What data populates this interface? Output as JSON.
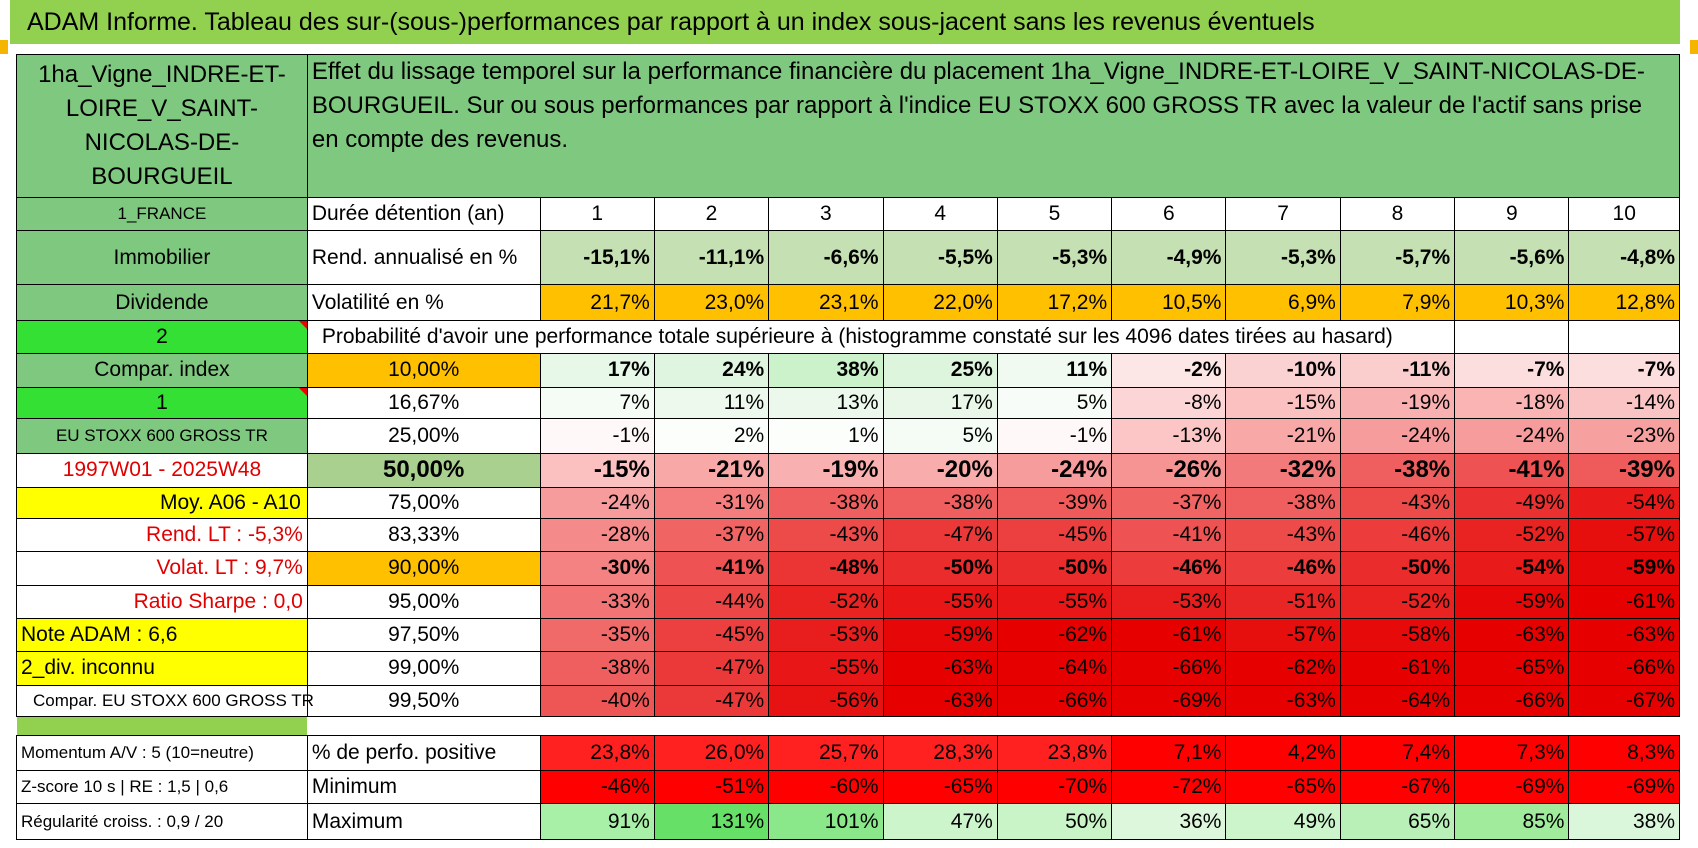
{
  "title": "ADAM Informe. Tableau des sur-(sous-)performances par rapport à un index sous-jacent sans les revenus éventuels",
  "asset": {
    "name": "1ha_Vigne_INDRE-ET-LOIRE_V_SAINT-NICOLAS-DE-BOURGUEIL",
    "country": "1_FRANCE",
    "type": "Immobilier",
    "revenue_kind": "Dividende",
    "flag_value_2": "2",
    "compar_label": "Compar. index",
    "flag_value_1": "1",
    "index_name": "EU STOXX 600 GROSS TR",
    "period": "1997W01 - 2025W48",
    "moy": "Moy. A06 - A10",
    "rend_lt": "Rend. LT :    -5,3%",
    "volat_lt": "Volat. LT :    9,7%",
    "sharpe": "Ratio Sharpe :    0,0",
    "note": "Note ADAM : 6,6",
    "div": "2_div. inconnu",
    "compar_full": "Compar. EU STOXX 600 GROSS TR",
    "momentum": "Momentum A/V : 5 (10=neutre)",
    "zscore": "Z-score 10 s | RE : 1,5 | 0,6",
    "regularite": "Régularité croiss. : 0,9 / 20"
  },
  "description": "Effet du lissage temporel sur la performance financière du placement 1ha_Vigne_INDRE-ET-LOIRE_V_SAINT-NICOLAS-DE-BOURGUEIL. Sur ou sous performances par rapport à l'indice EU STOXX 600 GROSS TR avec la valeur de l'actif sans prise en compte des revenus.",
  "header": {
    "duree_label": "Durée détention (an)",
    "years": [
      "1",
      "2",
      "3",
      "4",
      "5",
      "6",
      "7",
      "8",
      "9",
      "10"
    ]
  },
  "rend": {
    "label": "Rend. annualisé en %",
    "values": [
      "-15,1%",
      "-11,1%",
      "-6,6%",
      "-5,5%",
      "-5,3%",
      "-4,9%",
      "-5,3%",
      "-5,7%",
      "-5,6%",
      "-4,8%"
    ]
  },
  "vol": {
    "label": "Volatilité en %",
    "values": [
      "21,7%",
      "23,0%",
      "23,1%",
      "22,0%",
      "17,2%",
      "10,5%",
      "6,9%",
      "7,9%",
      "10,3%",
      "12,8%"
    ]
  },
  "prob_title": "Probabilité d'avoir une performance totale supérieure à (histogramme constaté sur les 4096 dates tirées au hasard)",
  "prob_rows": [
    {
      "p": "10,00%",
      "v": [
        "17%",
        "24%",
        "38%",
        "25%",
        "11%",
        "-2%",
        "-10%",
        "-11%",
        "-7%",
        "-7%"
      ],
      "c": [
        "#e8f8e8",
        "#dff5df",
        "#ccf2cc",
        "#ddf5dd",
        "#f0faf0",
        "#fde6e6",
        "#fbd2d2",
        "#fbcece",
        "#fddede",
        "#fddede"
      ]
    },
    {
      "p": "16,67%",
      "v": [
        "7%",
        "11%",
        "13%",
        "17%",
        "5%",
        "-8%",
        "-15%",
        "-19%",
        "-18%",
        "-14%"
      ],
      "c": [
        "#f5fbf5",
        "#eef9ee",
        "#ebf8eb",
        "#e8f7e8",
        "#f8fcf8",
        "#fcd6d6",
        "#fbc0c0",
        "#f9b0b0",
        "#fab4b4",
        "#fbc4c4"
      ]
    },
    {
      "p": "25,00%",
      "v": [
        "-1%",
        "2%",
        "1%",
        "5%",
        "-1%",
        "-13%",
        "-21%",
        "-24%",
        "-24%",
        "-23%"
      ],
      "c": [
        "#fff8f8",
        "#fbfefb",
        "#fcfefc",
        "#f5fcf5",
        "#fff8f8",
        "#fcc6c6",
        "#f9a8a8",
        "#f79c9c",
        "#f79c9c",
        "#f7a0a0"
      ]
    },
    {
      "p": "50,00%",
      "v": [
        "-15%",
        "-21%",
        "-19%",
        "-20%",
        "-24%",
        "-26%",
        "-32%",
        "-38%",
        "-41%",
        "-39%"
      ],
      "c": [
        "#fbc0c0",
        "#f9a8a8",
        "#f9b0b0",
        "#f9acac",
        "#f79c9c",
        "#f69494",
        "#f37a7a",
        "#f05f5f",
        "#ee5252",
        "#ef5a5a"
      ]
    },
    {
      "p": "75,00%",
      "v": [
        "-24%",
        "-31%",
        "-38%",
        "-38%",
        "-39%",
        "-37%",
        "-38%",
        "-43%",
        "-49%",
        "-54%"
      ],
      "c": [
        "#f79c9c",
        "#f47e7e",
        "#f05f5f",
        "#f05f5f",
        "#ef5a5a",
        "#f06464",
        "#f05f5f",
        "#ed4a4a",
        "#ea3030",
        "#e81a1a"
      ]
    },
    {
      "p": "83,33%",
      "v": [
        "-28%",
        "-37%",
        "-43%",
        "-47%",
        "-45%",
        "-41%",
        "-43%",
        "-46%",
        "-52%",
        "-57%"
      ],
      "c": [
        "#f58a8a",
        "#f06464",
        "#ed4a4a",
        "#eb3838",
        "#ec4040",
        "#ee5252",
        "#ed4a4a",
        "#ec3c3c",
        "#e92222",
        "#e70e0e"
      ]
    },
    {
      "p": "90,00%",
      "v": [
        "-30%",
        "-41%",
        "-48%",
        "-50%",
        "-50%",
        "-46%",
        "-46%",
        "-50%",
        "-54%",
        "-59%"
      ],
      "c": [
        "#f48282",
        "#ee5252",
        "#eb3434",
        "#ea2c2c",
        "#ea2c2c",
        "#ec3c3c",
        "#ec3c3c",
        "#ea2c2c",
        "#e81a1a",
        "#e60808"
      ]
    },
    {
      "p": "95,00%",
      "v": [
        "-33%",
        "-44%",
        "-52%",
        "-55%",
        "-55%",
        "-53%",
        "-51%",
        "-52%",
        "-59%",
        "-61%"
      ],
      "c": [
        "#f27474",
        "#ec4646",
        "#e92222",
        "#e81616",
        "#e81616",
        "#e81e1e",
        "#e92626",
        "#e92222",
        "#e60808",
        "#e60000"
      ]
    },
    {
      "p": "97,50%",
      "v": [
        "-35%",
        "-45%",
        "-53%",
        "-59%",
        "-62%",
        "-61%",
        "-57%",
        "-58%",
        "-63%",
        "-63%"
      ],
      "c": [
        "#f16a6a",
        "#ec4040",
        "#e81e1e",
        "#e60808",
        "#e60000",
        "#e60000",
        "#e70e0e",
        "#e70a0a",
        "#e60000",
        "#e60000"
      ]
    },
    {
      "p": "99,00%",
      "v": [
        "-38%",
        "-47%",
        "-55%",
        "-63%",
        "-64%",
        "-66%",
        "-62%",
        "-61%",
        "-65%",
        "-66%"
      ],
      "c": [
        "#f05f5f",
        "#eb3838",
        "#e81616",
        "#e60000",
        "#e60000",
        "#e60000",
        "#e60000",
        "#e60000",
        "#e60000",
        "#e60000"
      ]
    },
    {
      "p": "99,50%",
      "v": [
        "-40%",
        "-47%",
        "-56%",
        "-63%",
        "-66%",
        "-69%",
        "-63%",
        "-64%",
        "-66%",
        "-67%"
      ],
      "c": [
        "#ee5656",
        "#eb3838",
        "#e71212",
        "#e60000",
        "#e60000",
        "#e60000",
        "#e60000",
        "#e60000",
        "#e60000",
        "#e60000"
      ]
    }
  ],
  "pos": {
    "label": "% de perfo. positive",
    "values": [
      "23,8%",
      "26,0%",
      "25,7%",
      "28,3%",
      "23,8%",
      "7,1%",
      "4,2%",
      "7,4%",
      "7,3%",
      "8,3%"
    ],
    "colors": [
      "#ff2020",
      "#ff2020",
      "#ff2020",
      "#ff2020",
      "#ff2020",
      "#ff0000",
      "#ff0000",
      "#ff0000",
      "#ff0000",
      "#ff0000"
    ]
  },
  "min": {
    "label": "Minimum",
    "values": [
      "-46%",
      "-51%",
      "-60%",
      "-65%",
      "-70%",
      "-72%",
      "-65%",
      "-67%",
      "-69%",
      "-69%"
    ]
  },
  "max": {
    "label": "Maximum",
    "values": [
      "91%",
      "131%",
      "101%",
      "47%",
      "50%",
      "36%",
      "49%",
      "65%",
      "85%",
      "38%"
    ],
    "colors": [
      "#a8f0a8",
      "#66e066",
      "#8ae88a",
      "#ccf5cc",
      "#c8f4c8",
      "#ddf7dd",
      "#ccf5cc",
      "#b8f0b8",
      "#a0ec9c",
      "#dbf7db"
    ]
  }
}
